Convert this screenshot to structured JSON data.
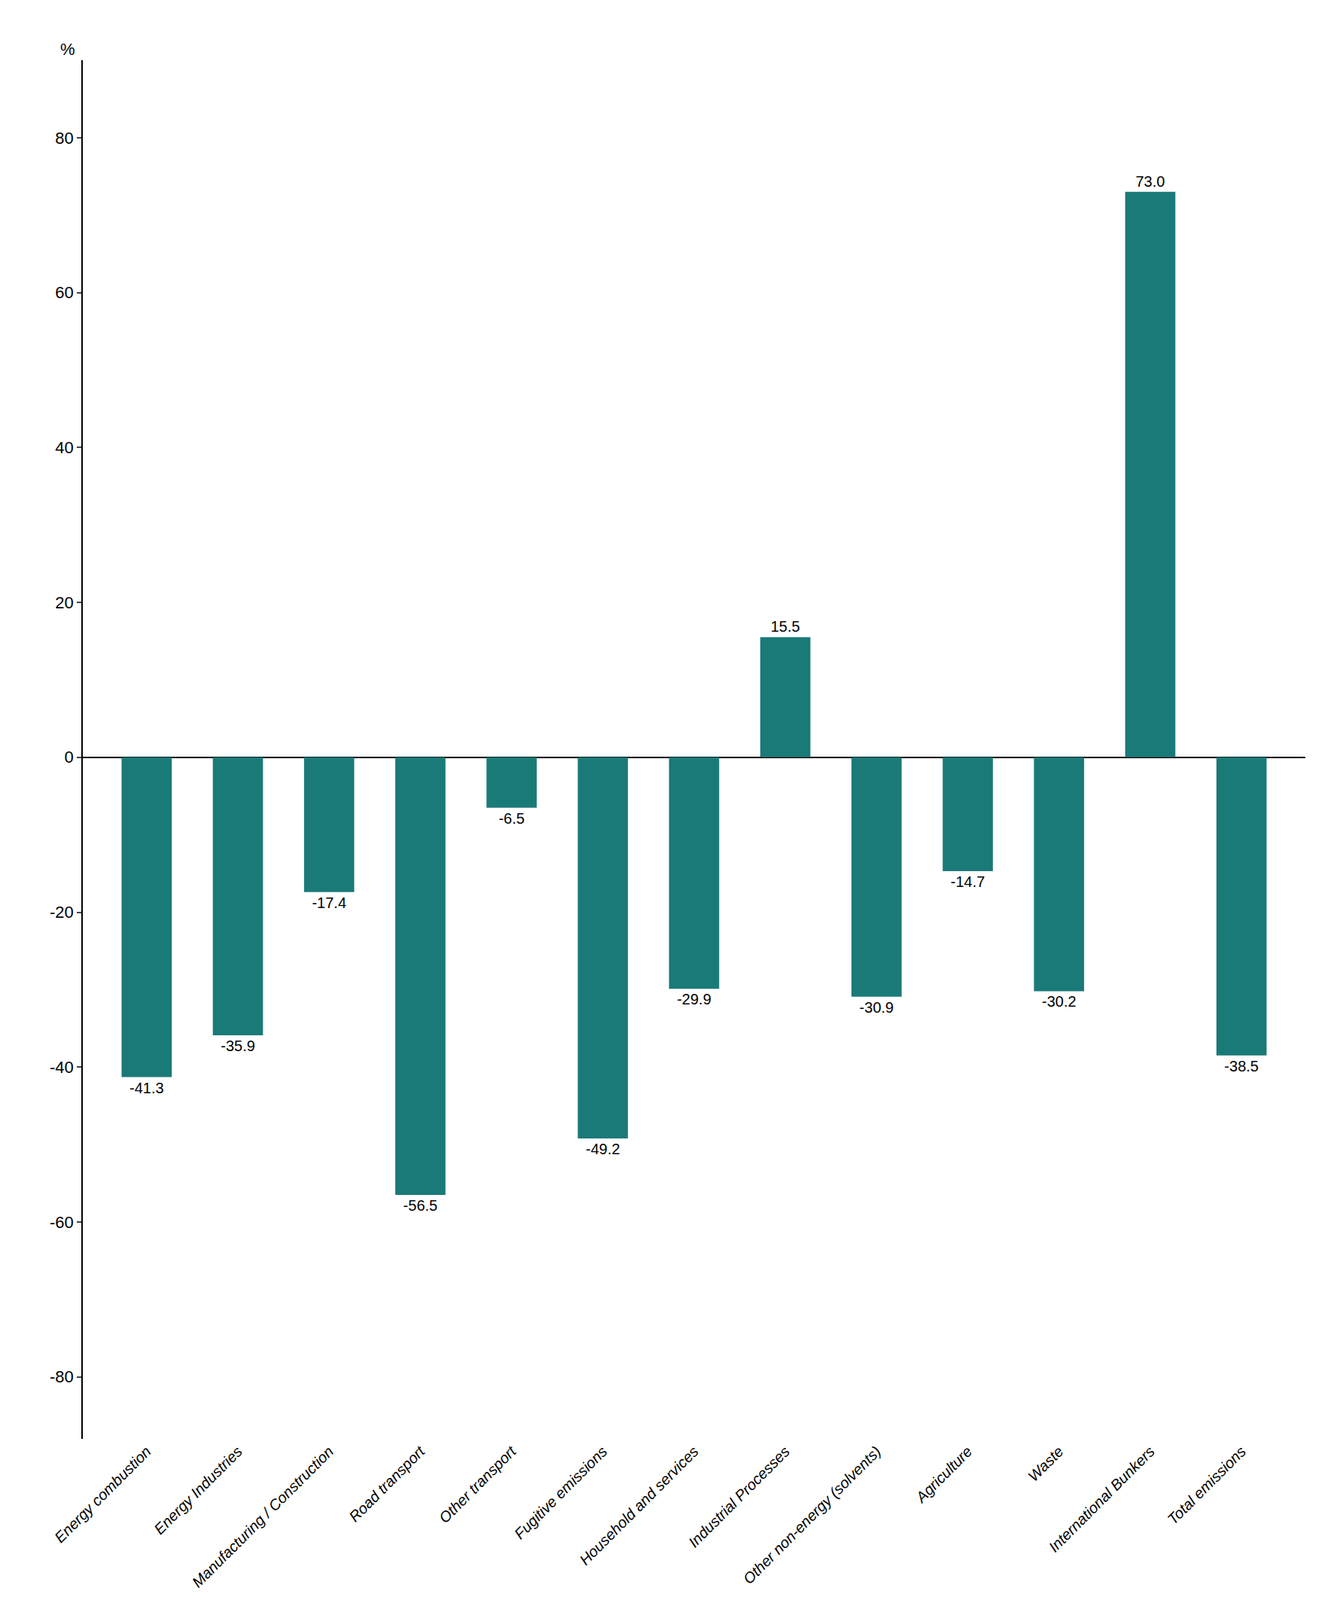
{
  "chart_data": {
    "type": "bar",
    "categories": [
      "Energy combustion",
      "Energy Industries",
      "Manufacturing / Construction",
      "Road transport",
      "Other transport",
      "Fugitive emissions",
      "Household and services",
      "Industrial Processes",
      "Other non-energy (solvents)",
      "Agriculture",
      "Waste",
      "International Bunkers",
      "Total emissions"
    ],
    "values": [
      -41.3,
      -35.9,
      -17.4,
      -56.5,
      -6.5,
      -49.2,
      -29.9,
      15.5,
      -30.9,
      -14.7,
      -30.2,
      73.0,
      -38.5
    ],
    "value_labels": [
      "-41.3",
      "-35.9",
      "-17.4",
      "-56.5",
      "-6.5",
      "-49.2",
      "-29.9",
      "15.5",
      "-30.9",
      "-14.7",
      "-30.2",
      "73.0",
      "-38.5"
    ],
    "color": "#1a7a78",
    "ylim": [
      -88,
      90
    ],
    "yticks": [
      -80,
      -60,
      -40,
      -20,
      0,
      20,
      40,
      60,
      80
    ],
    "ylabel": "%",
    "grid": false,
    "data_labels": true
  }
}
